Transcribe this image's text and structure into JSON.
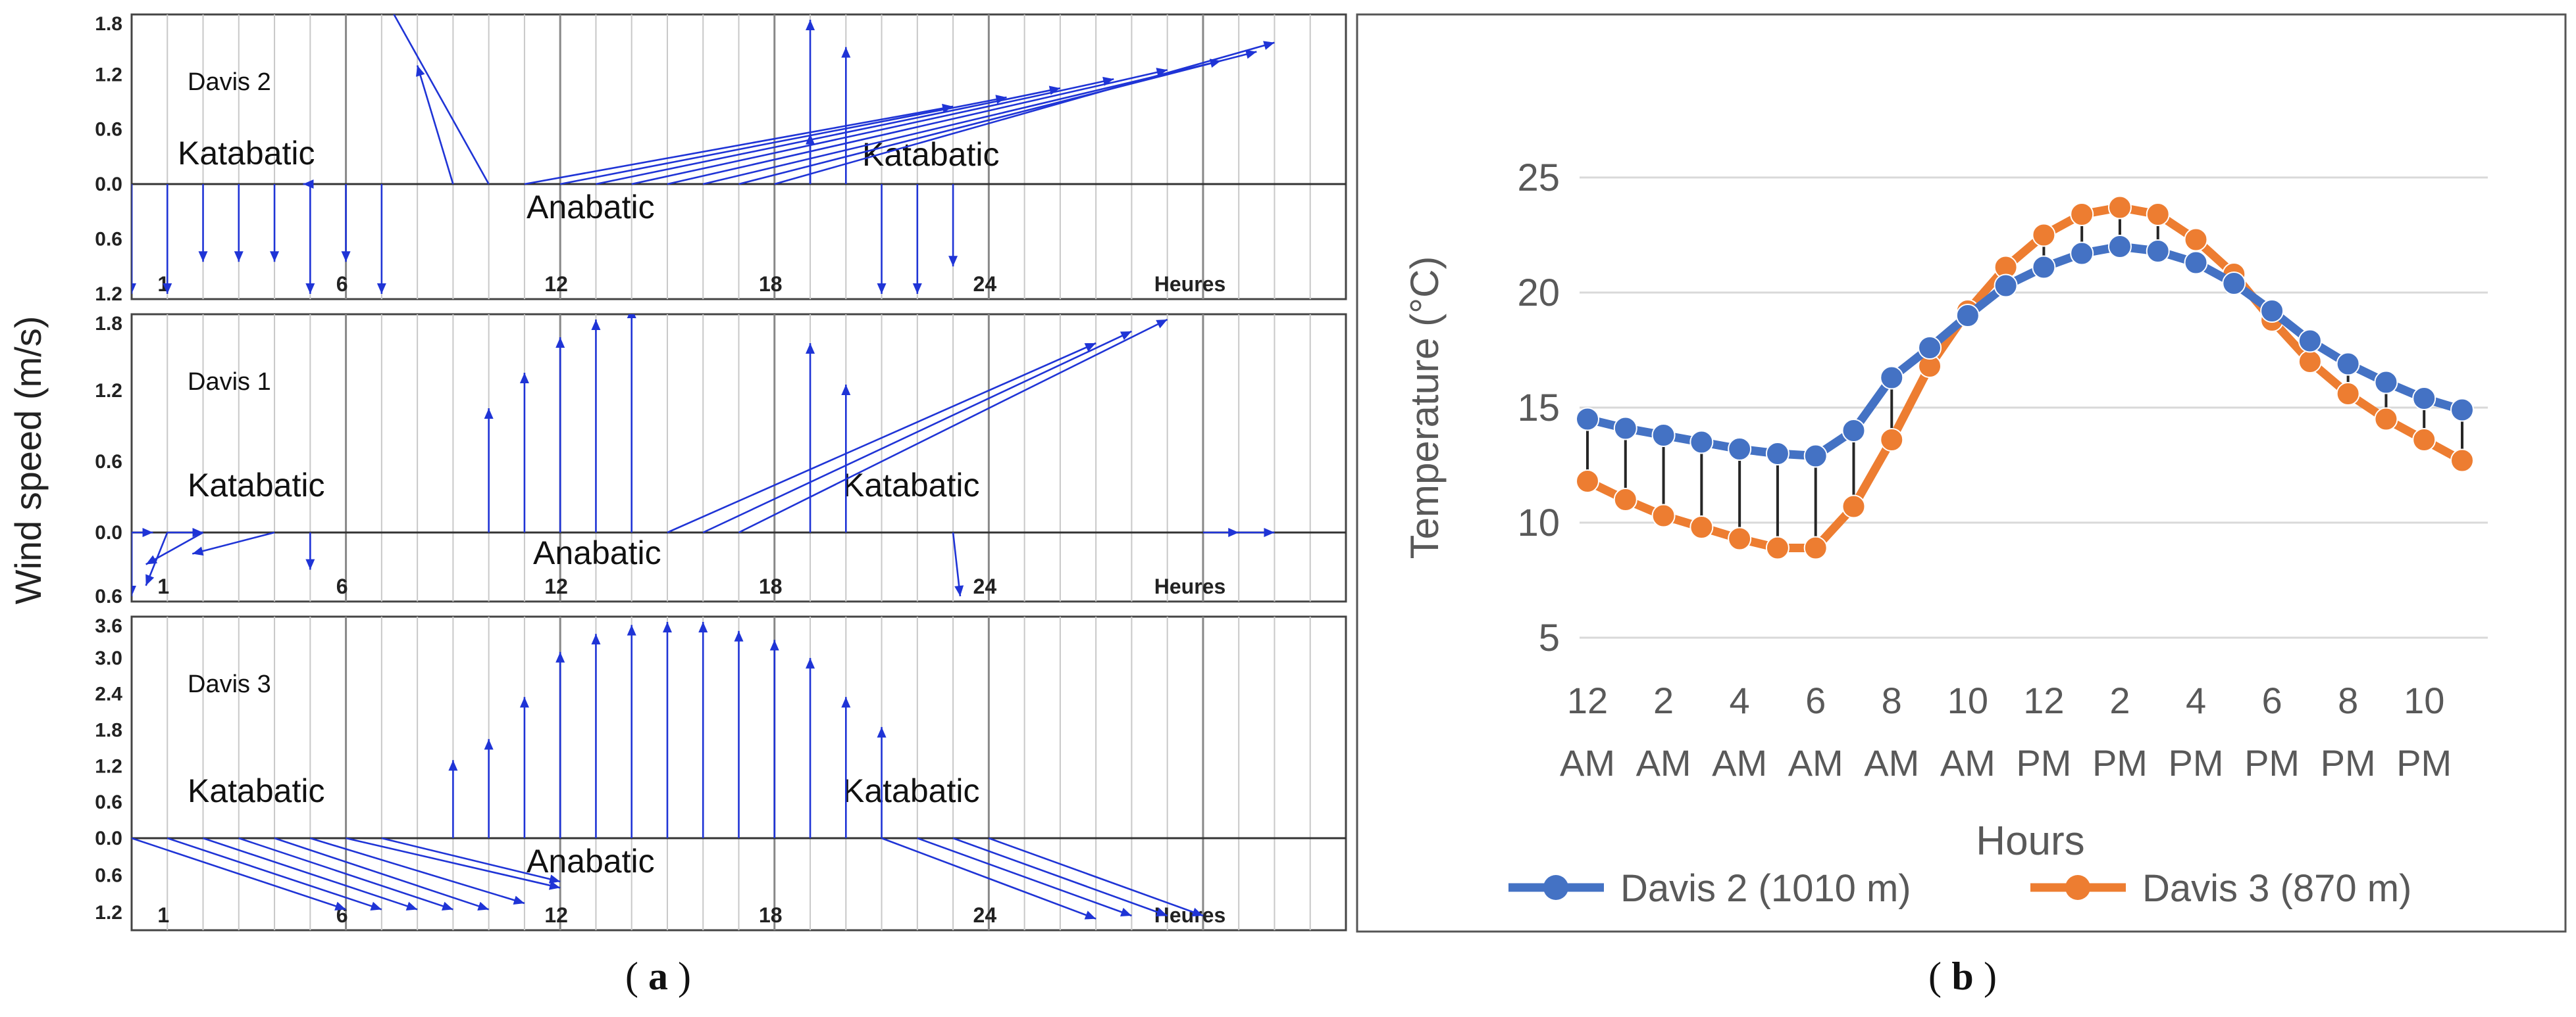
{
  "figure": {
    "caption_a": "a",
    "caption_b": "b"
  },
  "panel_a": {
    "y_label": "Wind speed (m/s)",
    "colors": {
      "vector": "#1f34d6",
      "axis": "#333333",
      "grid": "#c8c8c8",
      "grid_major": "#888888",
      "panel_border": "#444444"
    },
    "x_axis": {
      "tick_labels": [
        "1",
        "6",
        "12",
        "18",
        "24"
      ],
      "tick_hours": [
        1,
        6,
        12,
        18,
        24
      ],
      "unit_label": "Heures",
      "x_min": 0,
      "x_max": 34
    },
    "subplots": [
      {
        "name": "Davis 2",
        "y_ticks_above": [
          "1.8",
          "1.2",
          "0.6",
          "0.0"
        ],
        "y_ticks_above_values": [
          1.8,
          1.2,
          0.6,
          0.0
        ],
        "y_ticks_below": [
          "0.6",
          "1.2"
        ],
        "y_ticks_below_values": [
          0.6,
          1.2
        ],
        "y_max": 1.8,
        "y_min": 1.2,
        "label_katabatic_left": "Katabatic",
        "label_katabatic_right": "Katabatic",
        "label_anabatic": "Anabatic",
        "vectors": [
          [
            0,
            0,
            0,
            -1.2
          ],
          [
            1,
            0,
            0,
            -1.2
          ],
          [
            2,
            0,
            0,
            -0.85
          ],
          [
            3,
            0,
            0,
            -0.85
          ],
          [
            4,
            0,
            0,
            -0.85
          ],
          [
            5,
            0,
            -0.2,
            0
          ],
          [
            5,
            0,
            0,
            -1.2
          ],
          [
            6,
            0,
            0,
            -0.85
          ],
          [
            7,
            0,
            0,
            -1.2
          ],
          [
            9,
            0,
            -1.0,
            1.3
          ],
          [
            10,
            0,
            -3.0,
            2.1
          ],
          [
            11,
            0,
            12.0,
            0.85
          ],
          [
            12,
            0,
            12.5,
            0.95
          ],
          [
            13,
            0,
            13.0,
            1.05
          ],
          [
            14,
            0,
            13.5,
            1.15
          ],
          [
            15,
            0,
            14.0,
            1.25
          ],
          [
            16,
            0,
            14.5,
            1.35
          ],
          [
            17,
            0,
            14.5,
            1.45
          ],
          [
            18,
            0,
            14.0,
            1.55
          ],
          [
            19,
            0,
            0,
            0.55
          ],
          [
            19,
            0,
            0,
            1.8
          ],
          [
            20,
            0,
            0,
            1.5
          ],
          [
            21,
            0,
            0,
            -1.2
          ],
          [
            22,
            0,
            0,
            -1.2
          ],
          [
            23,
            0,
            0,
            -0.9
          ]
        ]
      },
      {
        "name": "Davis 1",
        "y_ticks_above": [
          "1.8",
          "1.2",
          "0.6",
          "0.0"
        ],
        "y_ticks_above_values": [
          1.8,
          1.2,
          0.6,
          0.0
        ],
        "y_ticks_below": [
          "0.6"
        ],
        "y_ticks_below_values": [
          0.6
        ],
        "y_max": 1.8,
        "y_min": 0.6,
        "label_katabatic_left": "Katabatic",
        "label_katabatic_right": "Katabatic",
        "label_anabatic": "Anabatic",
        "vectors": [
          [
            0,
            0,
            0,
            -0.6
          ],
          [
            0,
            0,
            0.6,
            0
          ],
          [
            1,
            0,
            -0.6,
            -0.5
          ],
          [
            1,
            0,
            1.0,
            0
          ],
          [
            2,
            0,
            -1.6,
            -0.3
          ],
          [
            4,
            0,
            -2.3,
            -0.2
          ],
          [
            5,
            0,
            0,
            -0.35
          ],
          [
            10,
            0,
            0,
            1.05
          ],
          [
            11,
            0,
            0,
            1.35
          ],
          [
            12,
            0,
            0,
            1.65
          ],
          [
            13,
            0,
            0,
            1.8
          ],
          [
            14,
            0,
            0,
            1.9
          ],
          [
            15,
            0,
            12.0,
            1.6
          ],
          [
            16,
            0,
            12.0,
            1.7
          ],
          [
            17,
            0,
            12.0,
            1.8
          ],
          [
            19,
            0,
            0,
            1.6
          ],
          [
            20,
            0,
            0,
            1.25
          ],
          [
            23,
            0,
            0.2,
            -0.6
          ],
          [
            30,
            0,
            1.0,
            0
          ],
          [
            31,
            0,
            1.0,
            0
          ]
        ]
      },
      {
        "name": "Davis 3",
        "y_ticks_above": [
          "3.6",
          "3.0",
          "2.4",
          "1.8",
          "1.2",
          "0.6",
          "0.0"
        ],
        "y_ticks_above_values": [
          3.6,
          3.0,
          2.4,
          1.8,
          1.2,
          0.6,
          0.0
        ],
        "y_ticks_below": [
          "0.6",
          "1.2"
        ],
        "y_ticks_below_values": [
          0.6,
          1.2
        ],
        "y_max": 3.6,
        "y_min": 1.4,
        "label_katabatic_left": "Katabatic",
        "label_katabatic_right": "Katabatic",
        "label_anabatic": "Anabatic",
        "vectors": [
          [
            0,
            0,
            6.0,
            -1.15
          ],
          [
            1,
            0,
            6.0,
            -1.15
          ],
          [
            2,
            0,
            6.0,
            -1.15
          ],
          [
            3,
            0,
            6.0,
            -1.15
          ],
          [
            4,
            0,
            6.0,
            -1.15
          ],
          [
            5,
            0,
            6.0,
            -1.05
          ],
          [
            6,
            0,
            6.0,
            -0.8
          ],
          [
            7,
            0,
            5.0,
            -0.7
          ],
          [
            9,
            0,
            0,
            1.3
          ],
          [
            10,
            0,
            0,
            1.65
          ],
          [
            11,
            0,
            0,
            2.35
          ],
          [
            12,
            0,
            0,
            3.1
          ],
          [
            13,
            0,
            0,
            3.4
          ],
          [
            14,
            0,
            0,
            3.55
          ],
          [
            15,
            0,
            0,
            3.6
          ],
          [
            16,
            0,
            0,
            3.6
          ],
          [
            17,
            0,
            0,
            3.45
          ],
          [
            18,
            0,
            0,
            3.3
          ],
          [
            19,
            0,
            0,
            3.0
          ],
          [
            20,
            0,
            0,
            2.35
          ],
          [
            21,
            0,
            0,
            1.85
          ],
          [
            21,
            0,
            6.0,
            -1.3
          ],
          [
            22,
            0,
            6.0,
            -1.25
          ],
          [
            23,
            0,
            6.0,
            -1.25
          ],
          [
            24,
            0,
            6.0,
            -1.25
          ]
        ]
      }
    ]
  },
  "chart_data": [
    {
      "type": "line",
      "xlabel": "Hours",
      "ylabel": "Temperature (°C)",
      "ylim": [
        5,
        25
      ],
      "y_ticks": [
        5,
        10,
        15,
        20,
        25
      ],
      "grid": true,
      "legend": "bottom",
      "x_ticks": [
        {
          "hour": 0,
          "line1": "12",
          "line2": "AM"
        },
        {
          "hour": 2,
          "line1": "2",
          "line2": "AM"
        },
        {
          "hour": 4,
          "line1": "4",
          "line2": "AM"
        },
        {
          "hour": 6,
          "line1": "6",
          "line2": "AM"
        },
        {
          "hour": 8,
          "line1": "8",
          "line2": "AM"
        },
        {
          "hour": 10,
          "line1": "10",
          "line2": "AM"
        },
        {
          "hour": 12,
          "line1": "12",
          "line2": "PM"
        },
        {
          "hour": 14,
          "line1": "2",
          "line2": "PM"
        },
        {
          "hour": 16,
          "line1": "4",
          "line2": "PM"
        },
        {
          "hour": 18,
          "line1": "6",
          "line2": "PM"
        },
        {
          "hour": 20,
          "line1": "8",
          "line2": "PM"
        },
        {
          "hour": 22,
          "line1": "10",
          "line2": "PM"
        }
      ],
      "x": [
        0,
        1,
        2,
        3,
        4,
        5,
        6,
        7,
        8,
        9,
        10,
        11,
        12,
        13,
        14,
        15,
        16,
        17,
        18,
        19,
        20,
        21,
        22,
        23
      ],
      "series": [
        {
          "name": "Davis 2 (1010 m)",
          "color": "#4472c4",
          "values": [
            14.5,
            14.1,
            13.8,
            13.5,
            13.2,
            13.0,
            12.9,
            14.0,
            16.3,
            17.6,
            19.0,
            20.3,
            21.1,
            21.7,
            22.0,
            21.8,
            21.3,
            20.4,
            19.2,
            17.9,
            16.9,
            16.1,
            15.4,
            14.9
          ]
        },
        {
          "name": "Davis 3 (870 m)",
          "color": "#ed7d31",
          "values": [
            11.8,
            11.0,
            10.3,
            9.8,
            9.3,
            8.9,
            8.9,
            10.7,
            13.6,
            16.8,
            19.2,
            21.1,
            22.5,
            23.4,
            23.7,
            23.4,
            22.3,
            20.8,
            18.8,
            17.0,
            15.6,
            14.5,
            13.6,
            12.7
          ]
        }
      ]
    }
  ]
}
